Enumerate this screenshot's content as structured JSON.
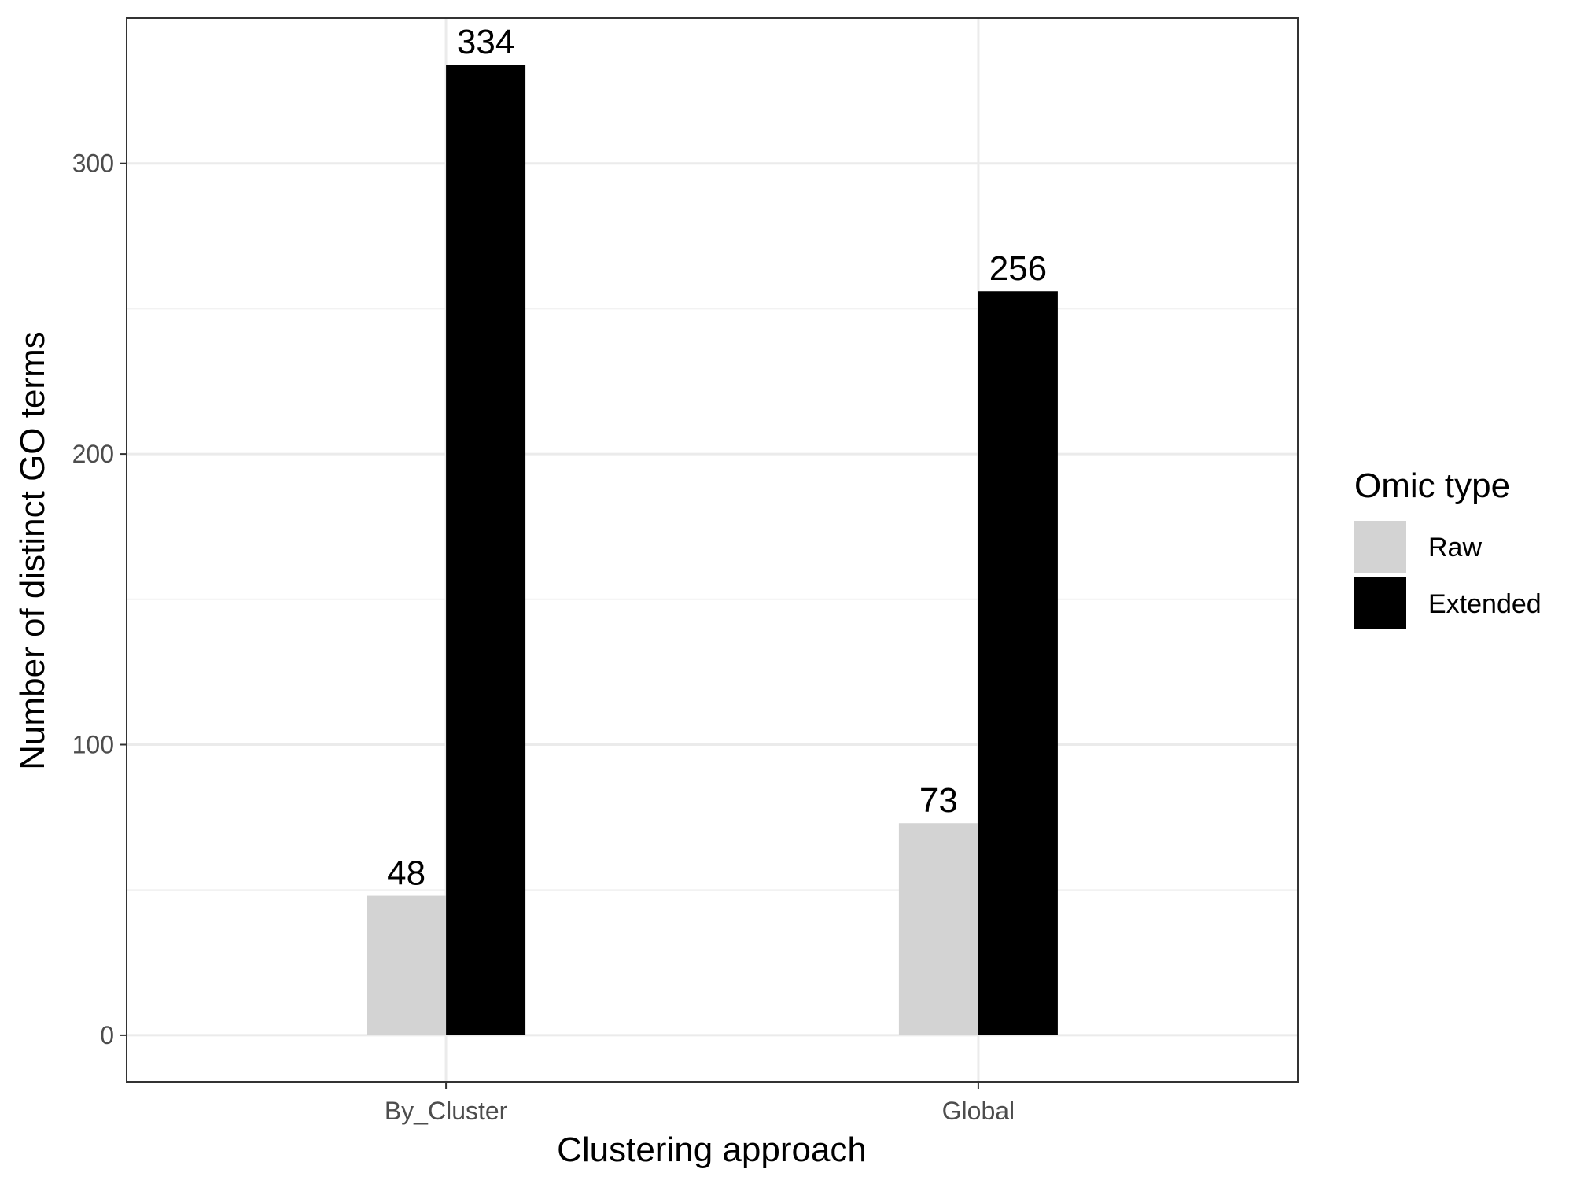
{
  "chart_data": {
    "type": "bar",
    "categories": [
      "By_Cluster",
      "Global"
    ],
    "series": [
      {
        "name": "Raw",
        "values": [
          48,
          73
        ],
        "color": "#d3d3d3"
      },
      {
        "name": "Extended",
        "values": [
          334,
          256
        ],
        "color": "#000000"
      }
    ],
    "data_labels": [
      [
        "48",
        "73"
      ],
      [
        "334",
        "256"
      ]
    ],
    "title": "",
    "xlabel": "Clustering approach",
    "ylabel": "Number of distinct GO terms",
    "ylim": [
      -16,
      350
    ],
    "yticks": [
      0,
      100,
      200,
      300
    ],
    "ytick_labels": [
      "0",
      "100",
      "200",
      "300"
    ],
    "grid": true,
    "legend": {
      "title": "Omic type",
      "position": "right"
    }
  },
  "colors": {
    "panel_border": "#333333",
    "grid_major": "#ebebeb",
    "grid_minor": "#f2f2f2",
    "background": "#ffffff"
  }
}
